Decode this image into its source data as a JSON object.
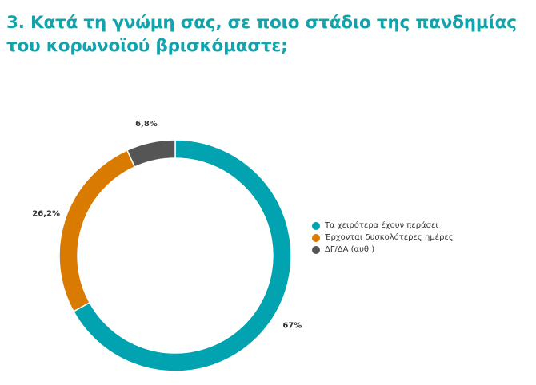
{
  "title_line1": "3. Κατά τη γνώμη σας, σε ποιο στάδιο της πανδημίας",
  "title_line2": "του κορωνοϊού βρισκόμαστε;",
  "chart_data": {
    "type": "pie",
    "variant": "donut",
    "labels": [
      "Τα χειρότερα έχουν περάσει",
      "Έρχονται δυσκολότερες ημέρες",
      "ΔΓ/ΔΑ (αυθ.)"
    ],
    "values": [
      67,
      26.2,
      6.8
    ],
    "value_labels": [
      "67%",
      "26,2%",
      "6,8%"
    ],
    "colors": [
      "#00a3af",
      "#d97b00",
      "#555555"
    ],
    "legend_position": "right"
  }
}
